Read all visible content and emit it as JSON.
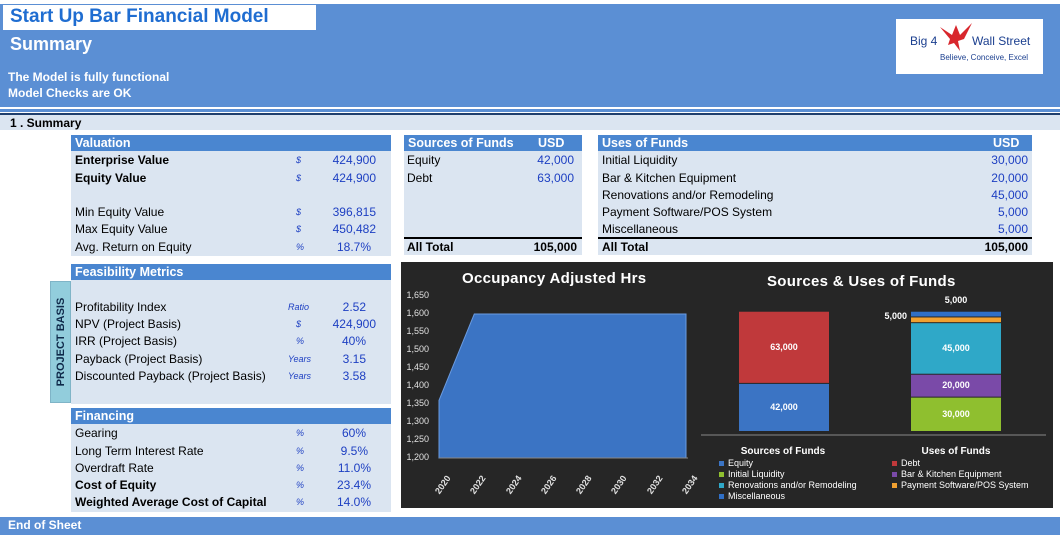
{
  "header": {
    "title": "Start Up Bar Financial Model",
    "subtitle": "Summary",
    "note1": "The Model is fully functional",
    "note2": "Model Checks are OK",
    "logo_left": "Big 4",
    "logo_right": "Wall Street",
    "logo_tag": "Believe, Conceive, Excel"
  },
  "section": {
    "label": "1 .  Summary"
  },
  "valuation": {
    "title": "Valuation",
    "rows": [
      {
        "label": "Enterprise Value",
        "unit": "$",
        "value": "424,900"
      },
      {
        "label": "Equity Value",
        "unit": "$",
        "value": "424,900"
      },
      {
        "label": "Min Equity Value",
        "unit": "$",
        "value": "396,815"
      },
      {
        "label": "Max Equity Value",
        "unit": "$",
        "value": "450,482"
      },
      {
        "label": "Avg. Return on Equity",
        "unit": "%",
        "value": "18.7%"
      }
    ]
  },
  "feasibility": {
    "title": "Feasibility Metrics",
    "side_label": "PROJECT BASIS",
    "rows": [
      {
        "label": "Profitability Index",
        "unit": "Ratio",
        "value": "2.52"
      },
      {
        "label": "NPV (Project Basis)",
        "unit": "$",
        "value": "424,900"
      },
      {
        "label": "IRR (Project Basis)",
        "unit": "%",
        "value": "40%"
      },
      {
        "label": "Payback  (Project Basis)",
        "unit": "Years",
        "value": "3.15"
      },
      {
        "label": "Discounted Payback  (Project Basis)",
        "unit": "Years",
        "value": "3.58"
      }
    ]
  },
  "financing": {
    "title": "Financing",
    "rows": [
      {
        "label": "Gearing",
        "unit": "%",
        "value": "60%"
      },
      {
        "label": "Long Term Interest Rate",
        "unit": "%",
        "value": "9.5%"
      },
      {
        "label": "Overdraft Rate",
        "unit": "%",
        "value": "11.0%"
      },
      {
        "label": "Cost of Equity",
        "unit": "%",
        "value": "23.4%"
      },
      {
        "label": "Weighted Average Cost of Capital",
        "unit": "%",
        "value": "14.0%"
      }
    ]
  },
  "sources": {
    "title": "Sources of Funds",
    "currency": "USD",
    "rows": [
      {
        "label": "Equity",
        "value": "42,000"
      },
      {
        "label": "Debt",
        "value": "63,000"
      }
    ],
    "total_label": "All Total",
    "total_value": "105,000"
  },
  "uses": {
    "title": "Uses of Funds",
    "currency": "USD",
    "rows": [
      {
        "label": "Initial Liquidity",
        "value": "30,000"
      },
      {
        "label": "Bar & Kitchen Equipment",
        "value": "20,000"
      },
      {
        "label": "Renovations and/or Remodeling",
        "value": "45,000"
      },
      {
        "label": "Payment Software/POS System",
        "value": "5,000"
      },
      {
        "label": "Miscellaneous",
        "value": "5,000"
      }
    ],
    "total_label": "All Total",
    "total_value": "105,000"
  },
  "chart_data": [
    {
      "type": "area",
      "title": "Occupancy Adjusted Hrs",
      "x": [
        2020,
        2021,
        2022,
        2023,
        2024,
        2025,
        2026,
        2027,
        2028,
        2029,
        2030,
        2031,
        2032,
        2033,
        2034
      ],
      "x_ticks": [
        "2020",
        "2022",
        "2024",
        "2026",
        "2028",
        "2030",
        "2032",
        "2034"
      ],
      "values": [
        1360,
        1480,
        1600,
        1600,
        1600,
        1600,
        1600,
        1600,
        1600,
        1600,
        1600,
        1600,
        1600,
        1600,
        1600
      ],
      "ylim": [
        1200,
        1650
      ],
      "y_ticks": [
        "1,650",
        "1,600",
        "1,550",
        "1,500",
        "1,450",
        "1,400",
        "1,350",
        "1,300",
        "1,250",
        "1,200"
      ],
      "color": "#3b74c4",
      "grid": false
    },
    {
      "type": "bar",
      "stacked": true,
      "title": "Sources & Uses of Funds",
      "categories": [
        "Sources of Funds",
        "Uses of Funds"
      ],
      "ylim": [
        0,
        110000
      ],
      "series": [
        {
          "name": "Equity",
          "values": [
            42000,
            0
          ],
          "color": "#3b74c4"
        },
        {
          "name": "Debt",
          "values": [
            63000,
            0
          ],
          "color": "#c0393b"
        },
        {
          "name": "Initial Liquidity",
          "values": [
            0,
            30000
          ],
          "color": "#8fbf2f"
        },
        {
          "name": "Bar & Kitchen Equipment",
          "values": [
            0,
            20000
          ],
          "color": "#7a4aa8"
        },
        {
          "name": "Renovations and/or Remodeling",
          "values": [
            0,
            45000
          ],
          "color": "#2fa8c8"
        },
        {
          "name": "Payment Software/POS System",
          "values": [
            0,
            5000
          ],
          "color": "#f0a030"
        },
        {
          "name": "Miscellaneous",
          "values": [
            0,
            5000
          ],
          "color": "#2f6fc6"
        }
      ],
      "data_labels": [
        {
          "category": 0,
          "series": 0,
          "text": "42,000"
        },
        {
          "category": 0,
          "series": 1,
          "text": "63,000"
        },
        {
          "category": 1,
          "series": 2,
          "text": "30,000"
        },
        {
          "category": 1,
          "series": 3,
          "text": "20,000"
        },
        {
          "category": 1,
          "series": 4,
          "text": "45,000"
        },
        {
          "category": 1,
          "series": 5,
          "text": "5,000"
        },
        {
          "category": 1,
          "series": 6,
          "text": "5,000"
        }
      ],
      "legend_position": "bottom"
    }
  ],
  "footer": {
    "label": "End of Sheet"
  }
}
